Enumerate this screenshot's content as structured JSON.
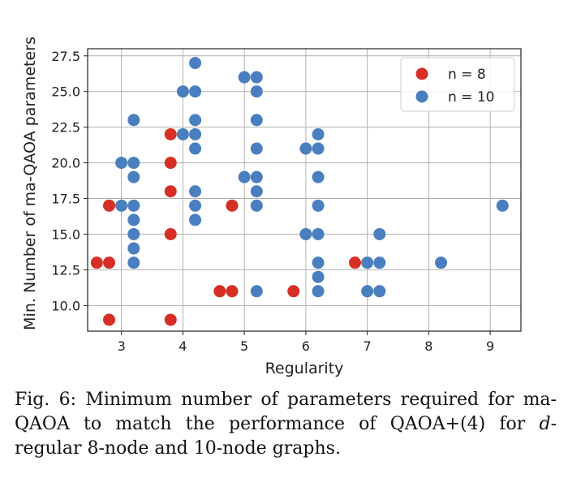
{
  "chart_data": {
    "type": "scatter",
    "title": "",
    "xlabel": "Regularity",
    "ylabel": "Min. Number of ma-QAOA parameters",
    "xlim": [
      2.45,
      9.5
    ],
    "ylim": [
      8.2,
      28.0
    ],
    "xticks": [
      3,
      4,
      5,
      6,
      7,
      8,
      9
    ],
    "yticks": [
      10.0,
      12.5,
      15.0,
      17.5,
      20.0,
      22.5,
      25.0,
      27.5
    ],
    "xtick_labels": [
      "3",
      "4",
      "5",
      "6",
      "7",
      "8",
      "9"
    ],
    "ytick_labels": [
      "10.0",
      "12.5",
      "15.0",
      "17.5",
      "20.0",
      "22.5",
      "25.0",
      "27.5"
    ],
    "grid": true,
    "legend_position": "top-right",
    "series": [
      {
        "name": "n = 8",
        "color": "#d62f26",
        "points": [
          [
            2.6,
            13
          ],
          [
            2.8,
            13
          ],
          [
            2.8,
            17
          ],
          [
            2.8,
            9
          ],
          [
            3.8,
            22
          ],
          [
            3.8,
            20
          ],
          [
            3.8,
            18
          ],
          [
            3.8,
            15
          ],
          [
            3.8,
            9
          ],
          [
            4.6,
            11
          ],
          [
            4.8,
            11
          ],
          [
            4.8,
            17
          ],
          [
            5.8,
            11
          ],
          [
            6.8,
            13
          ]
        ]
      },
      {
        "name": "n = 10",
        "color": "#4a7fbf",
        "points": [
          [
            3.0,
            20
          ],
          [
            3.0,
            17
          ],
          [
            3.2,
            23
          ],
          [
            3.2,
            20
          ],
          [
            3.2,
            19
          ],
          [
            3.2,
            17
          ],
          [
            3.2,
            16
          ],
          [
            3.2,
            15
          ],
          [
            3.2,
            14
          ],
          [
            3.2,
            13
          ],
          [
            4.0,
            25
          ],
          [
            4.0,
            22
          ],
          [
            4.2,
            27
          ],
          [
            4.2,
            25
          ],
          [
            4.2,
            23
          ],
          [
            4.2,
            22
          ],
          [
            4.2,
            21
          ],
          [
            4.2,
            18
          ],
          [
            4.2,
            17
          ],
          [
            4.2,
            16
          ],
          [
            5.0,
            26
          ],
          [
            5.0,
            19
          ],
          [
            5.2,
            26
          ],
          [
            5.2,
            25
          ],
          [
            5.2,
            23
          ],
          [
            5.2,
            21
          ],
          [
            5.2,
            19
          ],
          [
            5.2,
            18
          ],
          [
            5.2,
            17
          ],
          [
            5.2,
            11
          ],
          [
            6.0,
            21
          ],
          [
            6.0,
            15
          ],
          [
            6.2,
            22
          ],
          [
            6.2,
            21
          ],
          [
            6.2,
            19
          ],
          [
            6.2,
            17
          ],
          [
            6.2,
            15
          ],
          [
            6.2,
            13
          ],
          [
            6.2,
            12
          ],
          [
            6.2,
            11
          ],
          [
            7.0,
            13
          ],
          [
            7.0,
            11
          ],
          [
            7.2,
            15
          ],
          [
            7.2,
            13
          ],
          [
            7.2,
            11
          ],
          [
            8.2,
            13
          ],
          [
            9.2,
            17
          ]
        ]
      }
    ]
  },
  "caption": {
    "prefix": "Fig. 6: Minimum number of parameters required for ma-QAOA to match the performance of QAOA+(4) for ",
    "italic": "d",
    "suffix": "-regular 8-node and 10-node graphs."
  }
}
